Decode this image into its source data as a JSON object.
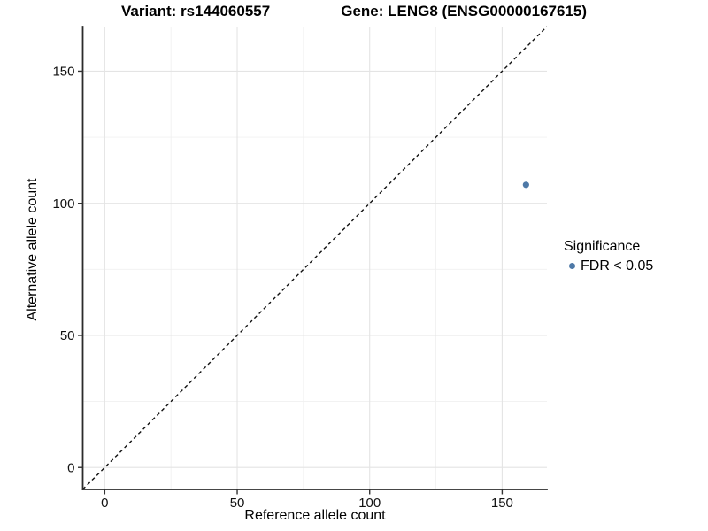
{
  "chart_data": {
    "type": "scatter",
    "titles": [
      "Variant: rs144060557",
      "Gene: LENG8 (ENSG00000167615)"
    ],
    "xlabel": "Reference allele count",
    "ylabel": "Alternative allele count",
    "xlim": [
      -8.3,
      166.9
    ],
    "ylim": [
      -8.3,
      166.9
    ],
    "x_ticks": [
      0,
      50,
      100,
      150
    ],
    "y_ticks": [
      0,
      50,
      100,
      150
    ],
    "x_minor_ticks": [
      25,
      75,
      125
    ],
    "y_minor_ticks": [
      25,
      75,
      125
    ],
    "grid": true,
    "reference_line": {
      "kind": "identity-diagonal",
      "style": "dashed",
      "color": "#111111"
    },
    "series": [
      {
        "name": "FDR < 0.05",
        "color": "#4e79a7",
        "points": [
          {
            "x": 159,
            "y": 107
          }
        ]
      }
    ],
    "legend": {
      "title": "Significance",
      "position": "right",
      "items": [
        {
          "label": "FDR < 0.05",
          "color": "#4e79a7"
        }
      ]
    }
  }
}
